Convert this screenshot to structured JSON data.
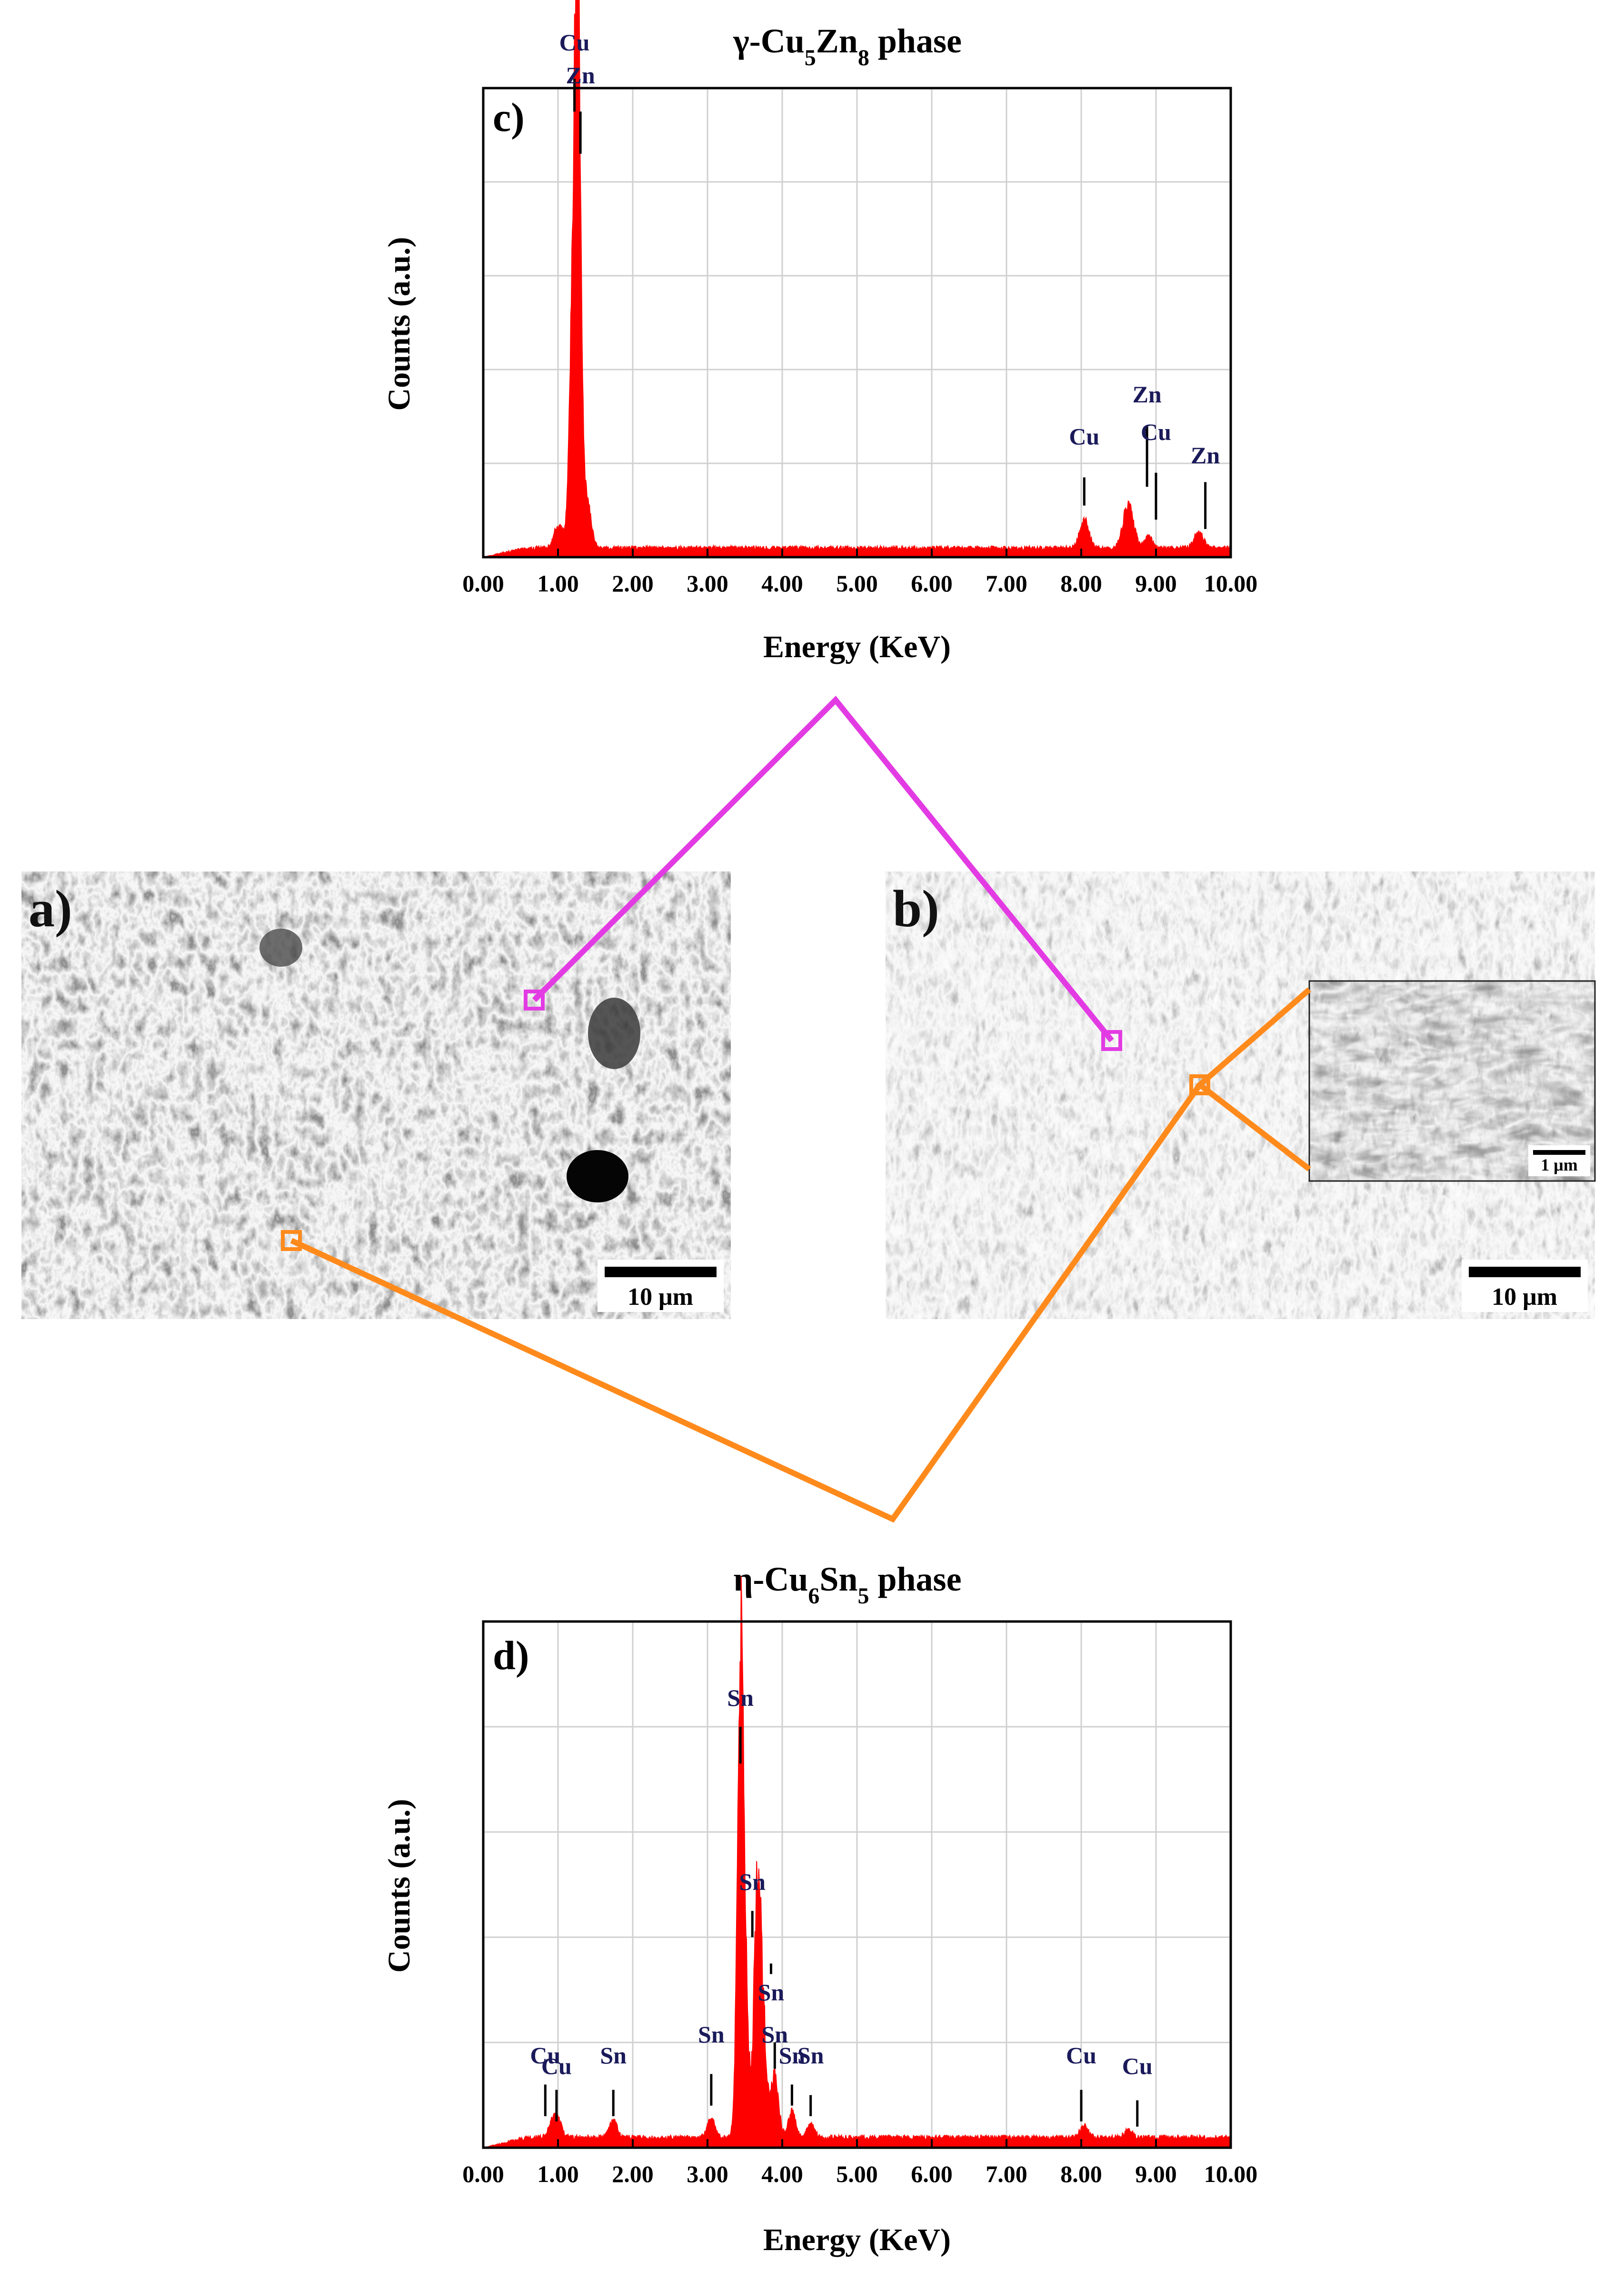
{
  "chart_data": [
    {
      "panel": "c)",
      "type": "area",
      "title": "γ-Cu5Zn8 phase",
      "title_parts": {
        "prefix": "γ-Cu",
        "sub1": "5",
        "mid": "Zn",
        "sub2": "8",
        "suffix": " phase"
      },
      "xlabel": "Energy (KeV)",
      "ylabel": "Counts (a.u.)",
      "xlim": [
        0,
        10
      ],
      "ylim": [
        0,
        100
      ],
      "xticks": [
        "0.00",
        "1.00",
        "2.00",
        "3.00",
        "4.00",
        "5.00",
        "6.00",
        "7.00",
        "8.00",
        "9.00",
        "10.00"
      ],
      "grid": true,
      "series_color": "#ff0000",
      "baseline": 1.5,
      "peaks": [
        {
          "e": 1.01,
          "h": 5,
          "w": 0.06
        },
        {
          "e": 1.22,
          "h": 72,
          "w": 0.05
        },
        {
          "e": 1.27,
          "h": 84,
          "w": 0.035
        },
        {
          "e": 1.37,
          "h": 12,
          "w": 0.06
        },
        {
          "e": 8.04,
          "h": 6,
          "w": 0.06
        },
        {
          "e": 8.63,
          "h": 9,
          "w": 0.07
        },
        {
          "e": 8.9,
          "h": 2.5,
          "w": 0.05
        },
        {
          "e": 9.57,
          "h": 3.5,
          "w": 0.06
        }
      ],
      "peak_labels": [
        {
          "text": "Cu",
          "e": 1.22,
          "tick": [
            102,
            95
          ],
          "label_y": 108
        },
        {
          "text": "Zn",
          "e": 1.3,
          "tick": [
            95,
            86
          ],
          "label_y": 101
        },
        {
          "text": "Cu",
          "e": 8.04,
          "tick": [
            17,
            11
          ],
          "label_y": 24
        },
        {
          "text": "Zn",
          "e": 8.88,
          "tick": [
            28,
            15
          ],
          "label_y": 33
        },
        {
          "text": "Cu",
          "e": 9.0,
          "tick": [
            18,
            8
          ],
          "label_y": 25
        },
        {
          "text": "Zn",
          "e": 9.66,
          "tick": [
            16,
            6
          ],
          "label_y": 20
        }
      ]
    },
    {
      "panel": "d)",
      "type": "area",
      "title": "η-Cu6Sn5 phase",
      "title_parts": {
        "prefix": "η-Cu",
        "sub1": "6",
        "mid": "Sn",
        "sub2": "5",
        "suffix": " phase"
      },
      "xlabel": "Energy (KeV)",
      "ylabel": "Counts (a.u.)",
      "xlim": [
        0,
        10
      ],
      "ylim": [
        0,
        100
      ],
      "xticks": [
        "0.00",
        "1.00",
        "2.00",
        "3.00",
        "4.00",
        "5.00",
        "6.00",
        "7.00",
        "8.00",
        "9.00",
        "10.00"
      ],
      "grid": true,
      "series_color": "#ff0000",
      "baseline": 1.5,
      "peaks": [
        {
          "e": 0.93,
          "h": 3.5,
          "w": 0.05
        },
        {
          "e": 1.01,
          "h": 2.5,
          "w": 0.05
        },
        {
          "e": 1.74,
          "h": 3.5,
          "w": 0.05
        },
        {
          "e": 3.05,
          "h": 3.5,
          "w": 0.05
        },
        {
          "e": 3.44,
          "h": 72,
          "w": 0.04
        },
        {
          "e": 3.48,
          "h": 30,
          "w": 0.06
        },
        {
          "e": 3.66,
          "h": 39,
          "w": 0.04
        },
        {
          "e": 3.73,
          "h": 26,
          "w": 0.05
        },
        {
          "e": 3.9,
          "h": 12,
          "w": 0.05
        },
        {
          "e": 4.13,
          "h": 5,
          "w": 0.05
        },
        {
          "e": 4.38,
          "h": 2.5,
          "w": 0.05
        },
        {
          "e": 8.04,
          "h": 2.5,
          "w": 0.05
        },
        {
          "e": 8.63,
          "h": 1.5,
          "w": 0.05
        }
      ],
      "peak_labels": [
        {
          "text": "Sn",
          "e": 3.44,
          "tick": [
            80,
            73
          ],
          "label_y": 84
        },
        {
          "text": "Sn",
          "e": 3.6,
          "tick": [
            45,
            40
          ],
          "label_y": 49
        },
        {
          "text": "Sn",
          "e": 3.85,
          "tick": [
            35,
            33
          ],
          "label_y": 28
        },
        {
          "text": "Sn",
          "e": 3.9,
          "tick": [
            20,
            15
          ],
          "label_y": 20
        },
        {
          "text": "Sn",
          "e": 4.13,
          "tick": [
            12,
            8
          ],
          "label_y": 16
        },
        {
          "text": "Sn",
          "e": 4.38,
          "tick": [
            10,
            6
          ],
          "label_y": 16
        },
        {
          "text": "Sn",
          "e": 3.05,
          "tick": [
            14,
            8
          ],
          "label_y": 20
        },
        {
          "text": "Sn",
          "e": 1.74,
          "tick": [
            11,
            6
          ],
          "label_y": 16
        },
        {
          "text": "Cu",
          "e": 0.83,
          "tick": [
            12,
            6
          ],
          "label_y": 16
        },
        {
          "text": "Cu",
          "e": 0.98,
          "tick": [
            11,
            5
          ],
          "label_y": 14
        },
        {
          "text": "Cu",
          "e": 8.0,
          "tick": [
            11,
            5
          ],
          "label_y": 16
        },
        {
          "text": "Cu",
          "e": 8.75,
          "tick": [
            9,
            4
          ],
          "label_y": 14
        }
      ]
    }
  ],
  "sem_images": [
    {
      "letter": "a)",
      "scale_bar": "10 μm"
    },
    {
      "letter": "b)",
      "scale_bar": "10 μm",
      "inset_scale_bar": "1 μm"
    }
  ],
  "colors": {
    "gamma_link": "#e33be3",
    "eta_link": "#ff8a1c",
    "spectrum": "#ff0000"
  }
}
